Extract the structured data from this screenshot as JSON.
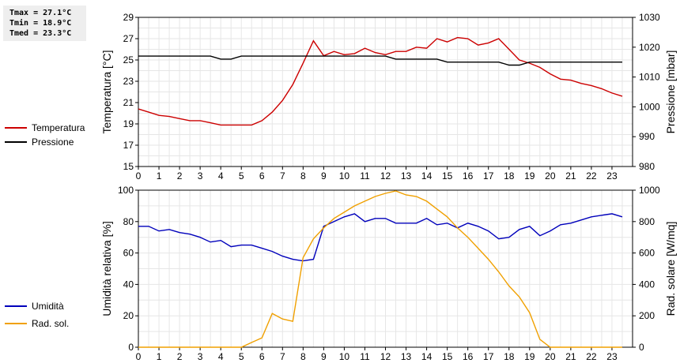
{
  "stats": {
    "tmax": "Tmax = 27.1°C",
    "tmin": "Tmin = 18.9°C",
    "tmed": "Tmed = 23.3°C"
  },
  "legend_top": [
    {
      "label": "Temperatura",
      "color": "#cc0000"
    },
    {
      "label": "Pressione",
      "color": "#000000"
    }
  ],
  "legend_bottom": [
    {
      "label": "Umidità",
      "color": "#0000bb"
    },
    {
      "label": "Rad. sol.",
      "color": "#f0a000"
    }
  ],
  "chart_data": [
    {
      "type": "line",
      "xlim": [
        0,
        24
      ],
      "x_ticks": [
        0,
        1,
        2,
        3,
        4,
        5,
        6,
        7,
        8,
        9,
        10,
        11,
        12,
        13,
        14,
        15,
        16,
        17,
        18,
        19,
        20,
        21,
        22,
        23
      ],
      "ylabel": "Temperatura [°C]",
      "ylim": [
        15,
        29
      ],
      "y_ticks": [
        15,
        17,
        19,
        21,
        23,
        25,
        27,
        29
      ],
      "y2label": "Pressione [mbar]",
      "y2lim": [
        980,
        1030
      ],
      "y2_ticks": [
        980,
        990,
        1000,
        1010,
        1020,
        1030
      ],
      "grid": true,
      "series": [
        {
          "name": "Temperatura",
          "axis": "left",
          "color": "#cc0000",
          "x": [
            0,
            0.5,
            1,
            1.5,
            2,
            2.5,
            3,
            3.5,
            4,
            4.5,
            5,
            5.5,
            6,
            6.5,
            7,
            7.5,
            8,
            8.5,
            9,
            9.5,
            10,
            10.5,
            11,
            11.5,
            12,
            12.5,
            13,
            13.5,
            14,
            14.5,
            15,
            15.5,
            16,
            16.5,
            17,
            17.5,
            18,
            18.5,
            19,
            19.5,
            20,
            20.5,
            21,
            21.5,
            22,
            22.5,
            23,
            23.5
          ],
          "y": [
            20.4,
            20.1,
            19.8,
            19.7,
            19.5,
            19.3,
            19.3,
            19.1,
            18.9,
            18.9,
            18.9,
            18.9,
            19.3,
            20.1,
            21.2,
            22.7,
            24.7,
            26.8,
            25.4,
            25.8,
            25.5,
            25.6,
            26.1,
            25.7,
            25.5,
            25.8,
            25.8,
            26.2,
            26.1,
            27.0,
            26.7,
            27.1,
            27.0,
            26.4,
            26.6,
            27.0,
            26.0,
            25.0,
            24.7,
            24.3,
            23.7,
            23.2,
            23.1,
            22.8,
            22.6,
            22.3,
            21.9,
            21.6
          ]
        },
        {
          "name": "Pressione",
          "axis": "right",
          "color": "#000000",
          "x": [
            0,
            0.5,
            1,
            1.5,
            2,
            2.5,
            3,
            3.5,
            4,
            4.5,
            5,
            5.5,
            6,
            6.5,
            7,
            7.5,
            8,
            8.5,
            9,
            9.5,
            10,
            10.5,
            11,
            11.5,
            12,
            12.5,
            13,
            13.5,
            14,
            14.5,
            15,
            15.5,
            16,
            16.5,
            17,
            17.5,
            18,
            18.5,
            19,
            19.5,
            20,
            20.5,
            21,
            21.5,
            22,
            22.5,
            23,
            23.5
          ],
          "y": [
            1017,
            1017,
            1017,
            1017,
            1017,
            1017,
            1017,
            1017,
            1016,
            1016,
            1017,
            1017,
            1017,
            1017,
            1017,
            1017,
            1017,
            1017,
            1017,
            1017,
            1017,
            1017,
            1017,
            1017,
            1017,
            1016,
            1016,
            1016,
            1016,
            1016,
            1015,
            1015,
            1015,
            1015,
            1015,
            1015,
            1014,
            1014,
            1015,
            1015,
            1015,
            1015,
            1015,
            1015,
            1015,
            1015,
            1015,
            1015
          ]
        }
      ]
    },
    {
      "type": "line",
      "xlim": [
        0,
        24
      ],
      "x_ticks": [
        0,
        1,
        2,
        3,
        4,
        5,
        6,
        7,
        8,
        9,
        10,
        11,
        12,
        13,
        14,
        15,
        16,
        17,
        18,
        19,
        20,
        21,
        22,
        23
      ],
      "ylabel": "Umidità relativa [%]",
      "ylim": [
        0,
        100
      ],
      "y_ticks": [
        0,
        20,
        40,
        60,
        80,
        100
      ],
      "y2label": "Rad. solare [W/mq]",
      "y2lim": [
        0,
        1000
      ],
      "y2_ticks": [
        0,
        200,
        400,
        600,
        800,
        1000
      ],
      "grid": true,
      "series": [
        {
          "name": "Umidità",
          "axis": "left",
          "color": "#0000bb",
          "x": [
            0,
            0.5,
            1,
            1.5,
            2,
            2.5,
            3,
            3.5,
            4,
            4.5,
            5,
            5.5,
            6,
            6.5,
            7,
            7.5,
            8,
            8.5,
            9,
            9.5,
            10,
            10.5,
            11,
            11.5,
            12,
            12.5,
            13,
            13.5,
            14,
            14.5,
            15,
            15.5,
            16,
            16.5,
            17,
            17.5,
            18,
            18.5,
            19,
            19.5,
            20,
            20.5,
            21,
            21.5,
            22,
            22.5,
            23,
            23.5
          ],
          "y": [
            77,
            77,
            74,
            75,
            73,
            72,
            70,
            67,
            68,
            64,
            65,
            65,
            63,
            61,
            58,
            56,
            55,
            56,
            77,
            80,
            83,
            85,
            80,
            82,
            82,
            79,
            79,
            79,
            82,
            78,
            79,
            76,
            79,
            77,
            74,
            69,
            70,
            75,
            77,
            71,
            74,
            78,
            79,
            81,
            83,
            84,
            85,
            83
          ]
        },
        {
          "name": "Rad. sol.",
          "axis": "right",
          "color": "#f0a000",
          "x": [
            0,
            0.5,
            1,
            1.5,
            2,
            2.5,
            3,
            3.5,
            4,
            4.5,
            5,
            5.5,
            6,
            6.5,
            7,
            7.5,
            8,
            8.5,
            9,
            9.5,
            10,
            10.5,
            11,
            11.5,
            12,
            12.5,
            13,
            13.5,
            14,
            14.5,
            15,
            15.5,
            16,
            16.5,
            17,
            17.5,
            18,
            18.5,
            19,
            19.5,
            20,
            20.5,
            21,
            21.5,
            22,
            22.5,
            23,
            23.5
          ],
          "y": [
            0,
            0,
            0,
            0,
            0,
            0,
            0,
            0,
            0,
            0,
            0,
            30,
            60,
            215,
            180,
            165,
            570,
            690,
            760,
            820,
            860,
            900,
            930,
            960,
            980,
            995,
            970,
            960,
            930,
            880,
            830,
            760,
            700,
            630,
            560,
            480,
            390,
            320,
            220,
            50,
            0,
            0,
            0,
            0,
            0,
            0,
            0,
            0
          ]
        }
      ]
    }
  ]
}
